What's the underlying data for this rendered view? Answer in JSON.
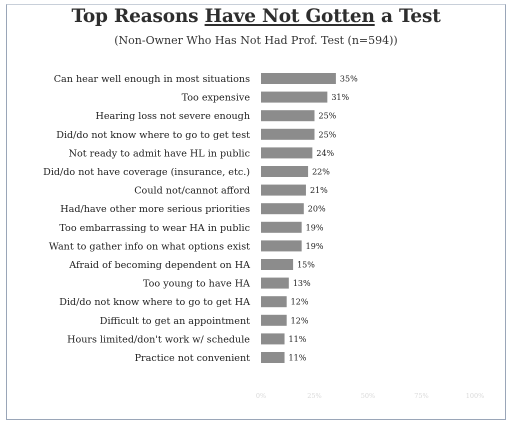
{
  "chart_data": {
    "type": "bar",
    "orientation": "horizontal",
    "title_parts": [
      "Top Reasons ",
      "Have Not Gotten",
      " a Test"
    ],
    "subtitle": "(Non-Owner Who Has Not Had Prof. Test (n=594))",
    "categories": [
      "Can hear well enough in most situations",
      "Too expensive",
      "Hearing loss not severe enough",
      "Did/do not know where to go to get test",
      "Not ready to admit have HL in public",
      "Did/do not have coverage (insurance, etc.)",
      "Could not/cannot afford",
      "Had/have other more serious priorities",
      "Too embarrassing to wear HA in public",
      "Want to gather info on what options exist",
      "Afraid of becoming dependent on HA",
      "Too young to have HA",
      "Did/do not know where to go to get HA",
      "Difficult to get an appointment",
      "Hours limited/don't work w/ schedule",
      "Practice not convenient"
    ],
    "values": [
      35,
      31,
      25,
      25,
      24,
      22,
      21,
      20,
      19,
      19,
      15,
      13,
      12,
      12,
      11,
      11
    ],
    "value_labels": [
      "35%",
      "31%",
      "25%",
      "25%",
      "24%",
      "22%",
      "21%",
      "20%",
      "19%",
      "19%",
      "15%",
      "13%",
      "12%",
      "12%",
      "11%",
      "11%"
    ],
    "xlim": [
      0,
      100
    ],
    "x_ticks": [
      0,
      25,
      50,
      75,
      100
    ],
    "x_tick_labels": [
      "0%",
      "25%",
      "50%",
      "75%",
      "100%"
    ],
    "grid": false,
    "bar_color": "#8c8c8c",
    "tick_label_color": "#d9d9d9"
  }
}
